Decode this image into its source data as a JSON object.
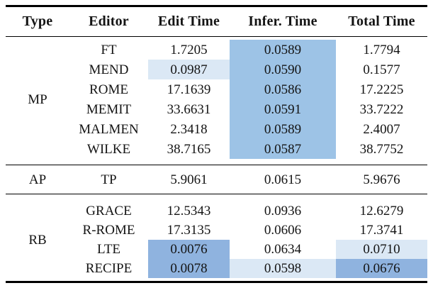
{
  "page": {
    "background": "#ffffff",
    "text_color": "#141414",
    "rule_color": "#000000"
  },
  "table": {
    "columns": [
      "Type",
      "Editor",
      "Edit Time",
      "Infer. Time",
      "Total Time"
    ],
    "highlight_colors": {
      "dark": "#8fb3df",
      "mid": "#9dc3e6",
      "light": "#dbe8f5"
    },
    "groups": [
      {
        "type": "MP",
        "rows": [
          {
            "editor": "FT",
            "edit_time": "1.7205",
            "infer_time": "0.0589",
            "total_time": "1.7794",
            "highlights": {
              "infer_time": "mid"
            }
          },
          {
            "editor": "MEND",
            "edit_time": "0.0987",
            "infer_time": "0.0590",
            "total_time": "0.1577",
            "highlights": {
              "edit_time": "light",
              "infer_time": "mid"
            }
          },
          {
            "editor": "ROME",
            "edit_time": "17.1639",
            "infer_time": "0.0586",
            "total_time": "17.2225",
            "highlights": {
              "infer_time": "mid"
            }
          },
          {
            "editor": "MEMIT",
            "edit_time": "33.6631",
            "infer_time": "0.0591",
            "total_time": "33.7222",
            "highlights": {
              "infer_time": "mid"
            }
          },
          {
            "editor": "MALMEN",
            "edit_time": "2.3418",
            "infer_time": "0.0589",
            "total_time": "2.4007",
            "highlights": {
              "infer_time": "mid"
            }
          },
          {
            "editor": "WILKE",
            "edit_time": "38.7165",
            "infer_time": "0.0587",
            "total_time": "38.7752",
            "highlights": {
              "infer_time": "mid"
            }
          }
        ]
      },
      {
        "type": "AP",
        "rows": [
          {
            "editor": "TP",
            "edit_time": "5.9061",
            "infer_time": "0.0615",
            "total_time": "5.9676",
            "highlights": {}
          }
        ]
      },
      {
        "type": "RB",
        "rows": [
          {
            "editor": "GRACE",
            "edit_time": "12.5343",
            "infer_time": "0.0936",
            "total_time": "12.6279",
            "highlights": {}
          },
          {
            "editor": "R-ROME",
            "edit_time": "17.3135",
            "infer_time": "0.0606",
            "total_time": "17.3741",
            "highlights": {}
          },
          {
            "editor": "LTE",
            "edit_time": "0.0076",
            "infer_time": "0.0634",
            "total_time": "0.0710",
            "highlights": {
              "edit_time": "dark",
              "total_time": "light"
            }
          },
          {
            "editor": "RECIPE",
            "edit_time": "0.0078",
            "infer_time": "0.0598",
            "total_time": "0.0676",
            "highlights": {
              "edit_time": "dark",
              "infer_time": "light",
              "total_time": "dark"
            }
          }
        ]
      }
    ]
  }
}
